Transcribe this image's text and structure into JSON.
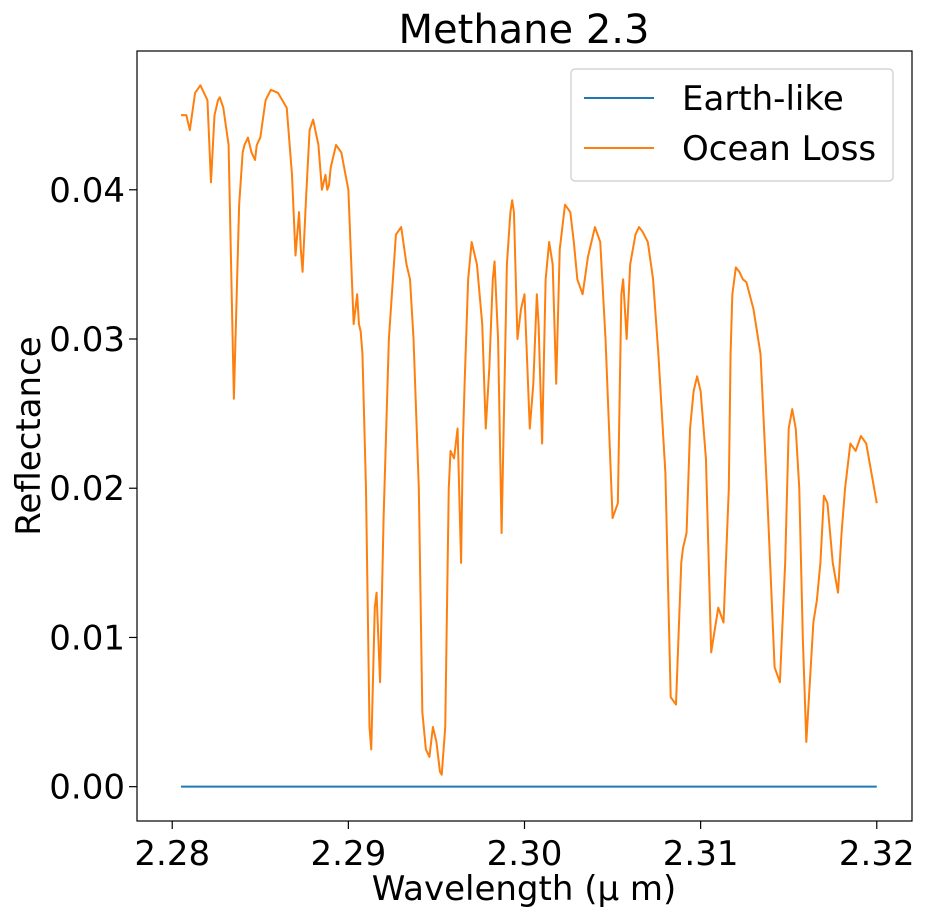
{
  "chart_data": {
    "type": "line",
    "title": "Methane 2.3",
    "xlabel": "Wavelength (μ m)",
    "ylabel": "Reflectance",
    "xlim": [
      2.278,
      2.322
    ],
    "ylim": [
      -0.0023,
      0.0493
    ],
    "xticks": [
      2.28,
      2.29,
      2.3,
      2.31,
      2.32
    ],
    "xtick_labels": [
      "2.28",
      "2.29",
      "2.30",
      "2.31",
      "2.32"
    ],
    "yticks": [
      0.0,
      0.01,
      0.02,
      0.03,
      0.04
    ],
    "ytick_labels": [
      "0.00",
      "0.01",
      "0.02",
      "0.03",
      "0.04"
    ],
    "grid": false,
    "legend_position": "top-right",
    "series": [
      {
        "name": "Earth-like",
        "color": "#1f77b4",
        "x": [
          2.2805,
          2.32
        ],
        "y": [
          0.0,
          0.0
        ]
      },
      {
        "name": "Ocean Loss",
        "color": "#ff7f0e",
        "x": [
          2.2805,
          2.2808,
          2.281,
          2.2813,
          2.2816,
          2.282,
          2.2822,
          2.2824,
          2.2826,
          2.2827,
          2.2829,
          2.2832,
          2.2835,
          2.2838,
          2.284,
          2.2841,
          2.2843,
          2.2845,
          2.2847,
          2.2848,
          2.285,
          2.2853,
          2.2856,
          2.286,
          2.2865,
          2.2868,
          2.287,
          2.2872,
          2.2873,
          2.2874,
          2.2876,
          2.2878,
          2.288,
          2.2883,
          2.2885,
          2.2887,
          2.2888,
          2.2889,
          2.289,
          2.2893,
          2.2896,
          2.29,
          2.2903,
          2.2905,
          2.2906,
          2.2907,
          2.2908,
          2.291,
          2.2912,
          2.2913,
          2.2915,
          2.2916,
          2.2917,
          2.2918,
          2.292,
          2.2923,
          2.2927,
          2.293,
          2.2933,
          2.2935,
          2.2937,
          2.294,
          2.2942,
          2.2944,
          2.2946,
          2.2948,
          2.295,
          2.2952,
          2.2953,
          2.2955,
          2.2957,
          2.2958,
          2.296,
          2.2962,
          2.2964,
          2.2965,
          2.2966,
          2.2968,
          2.297,
          2.2973,
          2.2976,
          2.2978,
          2.298,
          2.2982,
          2.2983,
          2.2985,
          2.2987,
          2.299,
          2.2992,
          2.2993,
          2.2994,
          2.2996,
          2.2998,
          2.3,
          2.3003,
          2.3005,
          2.3007,
          2.3008,
          2.301,
          2.3012,
          2.3014,
          2.3016,
          2.3018,
          2.302,
          2.3023,
          2.3026,
          2.3028,
          2.303,
          2.3033,
          2.3036,
          2.304,
          2.3043,
          2.3046,
          2.305,
          2.3053,
          2.3055,
          2.3056,
          2.3057,
          2.3058,
          2.306,
          2.3063,
          2.3065,
          2.3067,
          2.307,
          2.3073,
          2.3076,
          2.308,
          2.3083,
          2.3086,
          2.3089,
          2.309,
          2.3092,
          2.3094,
          2.3096,
          2.3098,
          2.31,
          2.3103,
          2.3106,
          2.311,
          2.3113,
          2.3116,
          2.3117,
          2.3118,
          2.312,
          2.3122,
          2.3124,
          2.3126,
          2.313,
          2.3134,
          2.3138,
          2.3142,
          2.3145,
          2.3148,
          2.315,
          2.3152,
          2.3154,
          2.3156,
          2.3158,
          2.316,
          2.3162,
          2.3164,
          2.3166,
          2.3168,
          2.317,
          2.3172,
          2.3175,
          2.3178,
          2.318,
          2.3182,
          2.3185,
          2.3188,
          2.3191,
          2.3194,
          2.3197,
          2.32
        ],
        "y": [
          0.045,
          0.045,
          0.044,
          0.0465,
          0.047,
          0.046,
          0.0405,
          0.045,
          0.046,
          0.0462,
          0.0455,
          0.043,
          0.026,
          0.039,
          0.0425,
          0.043,
          0.0435,
          0.0425,
          0.042,
          0.043,
          0.0435,
          0.046,
          0.0467,
          0.0465,
          0.0455,
          0.041,
          0.0356,
          0.0385,
          0.036,
          0.0345,
          0.0395,
          0.044,
          0.0447,
          0.043,
          0.04,
          0.041,
          0.04,
          0.0403,
          0.0415,
          0.043,
          0.0425,
          0.04,
          0.031,
          0.033,
          0.031,
          0.0305,
          0.029,
          0.02,
          0.004,
          0.0025,
          0.012,
          0.013,
          0.01,
          0.007,
          0.018,
          0.03,
          0.037,
          0.0375,
          0.035,
          0.034,
          0.03,
          0.02,
          0.005,
          0.0025,
          0.002,
          0.004,
          0.003,
          0.001,
          0.0008,
          0.004,
          0.02,
          0.0225,
          0.022,
          0.024,
          0.015,
          0.023,
          0.027,
          0.034,
          0.0365,
          0.035,
          0.031,
          0.024,
          0.028,
          0.034,
          0.0352,
          0.03,
          0.017,
          0.035,
          0.0385,
          0.0393,
          0.0385,
          0.03,
          0.032,
          0.033,
          0.024,
          0.027,
          0.033,
          0.031,
          0.023,
          0.034,
          0.0365,
          0.035,
          0.027,
          0.036,
          0.039,
          0.0385,
          0.0365,
          0.034,
          0.033,
          0.0355,
          0.0375,
          0.0365,
          0.03,
          0.018,
          0.019,
          0.033,
          0.034,
          0.032,
          0.03,
          0.035,
          0.037,
          0.0375,
          0.0372,
          0.0365,
          0.034,
          0.029,
          0.021,
          0.006,
          0.0055,
          0.015,
          0.016,
          0.017,
          0.024,
          0.0265,
          0.0275,
          0.0265,
          0.022,
          0.009,
          0.012,
          0.011,
          0.02,
          0.029,
          0.033,
          0.0348,
          0.0345,
          0.034,
          0.0338,
          0.032,
          0.029,
          0.019,
          0.008,
          0.007,
          0.015,
          0.024,
          0.0253,
          0.024,
          0.02,
          0.01,
          0.003,
          0.007,
          0.011,
          0.0125,
          0.015,
          0.0195,
          0.019,
          0.015,
          0.013,
          0.017,
          0.02,
          0.023,
          0.0225,
          0.0235,
          0.023,
          0.021,
          0.019
        ]
      }
    ]
  }
}
